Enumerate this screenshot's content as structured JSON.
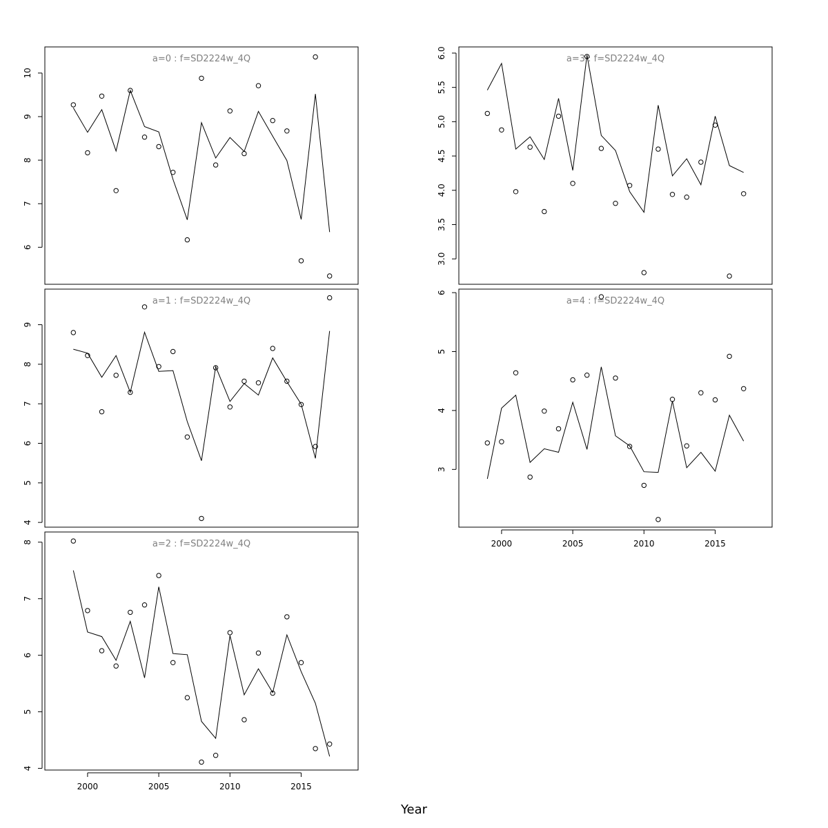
{
  "chart_data": {
    "type": "scatter",
    "xlabel": "Year",
    "x": [
      1999,
      2000,
      2001,
      2002,
      2003,
      2004,
      2005,
      2006,
      2007,
      2008,
      2009,
      2010,
      2011,
      2012,
      2013,
      2014,
      2015,
      2016,
      2017
    ],
    "xlim": [
      1997,
      2019
    ],
    "xticks": [
      2000,
      2005,
      2010,
      2015
    ],
    "panels": [
      {
        "title": "a=0  :  f=SD2224w_4Q",
        "ylim": [
          5.15,
          10.6
        ],
        "yticks": [
          6,
          7,
          8,
          9,
          10
        ],
        "series": [
          {
            "type": "scatter",
            "values": [
              9.27,
              8.17,
              9.47,
              7.3,
              9.6,
              8.53,
              8.31,
              7.72,
              6.17,
              9.88,
              7.89,
              9.13,
              8.15,
              9.71,
              8.91,
              8.67,
              5.69,
              10.37,
              5.34
            ]
          },
          {
            "type": "line",
            "values": [
              9.2,
              8.64,
              9.16,
              8.21,
              9.6,
              8.77,
              8.65,
              7.56,
              6.63,
              8.86,
              8.05,
              8.52,
              8.2,
              9.12,
              8.55,
              7.99,
              6.64,
              9.52,
              6.35
            ]
          }
        ]
      },
      {
        "title": "a=1  :  f=SD2224w_4Q",
        "ylim": [
          3.88,
          9.9
        ],
        "yticks": [
          4,
          5,
          6,
          7,
          8,
          9
        ],
        "series": [
          {
            "type": "scatter",
            "values": [
              8.8,
              8.22,
              6.8,
              7.72,
              7.29,
              9.45,
              7.94,
              8.32,
              6.16,
              4.1,
              7.91,
              6.92,
              7.57,
              7.53,
              8.4,
              7.57,
              6.98,
              5.92,
              9.68
            ]
          },
          {
            "type": "line",
            "values": [
              8.38,
              8.28,
              7.67,
              8.22,
              7.29,
              8.81,
              7.82,
              7.84,
              6.55,
              5.56,
              7.94,
              7.06,
              7.51,
              7.22,
              8.16,
              7.56,
              6.99,
              5.62,
              8.84
            ]
          }
        ]
      },
      {
        "title": "a=2  :  f=SD2224w_4Q",
        "ylim": [
          3.97,
          8.18
        ],
        "yticks": [
          4,
          5,
          6,
          7,
          8
        ],
        "series": [
          {
            "type": "scatter",
            "values": [
              8.02,
              6.79,
              6.08,
              5.81,
              6.76,
              6.89,
              7.41,
              5.87,
              5.25,
              4.11,
              4.23,
              6.4,
              4.86,
              6.04,
              5.33,
              6.68,
              5.87,
              4.35,
              4.43
            ]
          },
          {
            "type": "line",
            "values": [
              7.5,
              6.41,
              6.33,
              5.91,
              6.6,
              5.6,
              7.21,
              6.03,
              6.01,
              4.83,
              4.53,
              6.35,
              5.3,
              5.76,
              5.34,
              6.36,
              5.71,
              5.15,
              4.21
            ]
          }
        ]
      },
      {
        "title": "a=3  :  f=SD2224w_4Q",
        "ylim": [
          2.63,
          6.09
        ],
        "yticks": [
          3.0,
          3.5,
          4.0,
          4.5,
          5.0,
          5.5,
          6.0
        ],
        "series": [
          {
            "type": "scatter",
            "values": [
              5.12,
              4.88,
              3.98,
              4.63,
              3.69,
              5.08,
              4.1,
              5.95,
              4.61,
              3.81,
              4.07,
              2.8,
              4.6,
              3.94,
              3.9,
              4.41,
              4.95,
              2.75,
              3.95
            ]
          },
          {
            "type": "line",
            "values": [
              5.46,
              5.85,
              4.6,
              4.78,
              4.45,
              5.34,
              4.29,
              5.97,
              4.8,
              4.58,
              3.98,
              3.68,
              5.24,
              4.21,
              4.46,
              4.08,
              5.08,
              4.36,
              4.26
            ]
          }
        ]
      },
      {
        "title": "a=4  :  f=SD2224w_4Q",
        "ylim": [
          2.02,
          6.06
        ],
        "yticks": [
          3,
          4,
          5,
          6
        ],
        "series": [
          {
            "type": "scatter",
            "values": [
              3.45,
              3.47,
              4.64,
              2.87,
              3.99,
              3.69,
              4.52,
              4.6,
              5.93,
              4.55,
              3.39,
              2.73,
              2.15,
              4.19,
              3.4,
              4.3,
              4.18,
              4.92,
              4.37
            ]
          },
          {
            "type": "line",
            "values": [
              2.84,
              4.04,
              4.26,
              3.12,
              3.35,
              3.29,
              4.14,
              3.34,
              4.74,
              3.57,
              3.4,
              2.96,
              2.95,
              4.16,
              3.03,
              3.29,
              2.97,
              3.92,
              3.48
            ]
          }
        ]
      }
    ]
  }
}
